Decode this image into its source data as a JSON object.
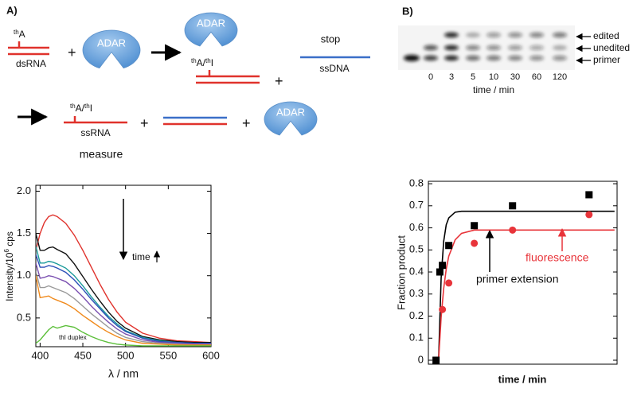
{
  "panel_a": {
    "label": "A)",
    "tha": [
      "th",
      "A"
    ],
    "dsrna": "dsRNA",
    "plus": "+",
    "adar": "ADAR",
    "tha_thi": [
      "th",
      "A/",
      "th",
      "I"
    ],
    "stop": "stop",
    "ssdna": "ssDNA",
    "ssrna": "ssRNA",
    "measure": "measure"
  },
  "panel_b": {
    "label": "B)",
    "band_labels": [
      "edited",
      "unedited",
      "primer"
    ],
    "lanes": [
      "0",
      "3",
      "5",
      "10",
      "30",
      "60",
      "120"
    ],
    "lane_axis": "time / min"
  },
  "chart_data": [
    {
      "type": "line",
      "xlabel": "λ / nm",
      "ylabel": [
        "Intensity/10",
        "6",
        " cps"
      ],
      "annotations": [
        "time",
        "thI duplex"
      ],
      "x": [
        395,
        400,
        405,
        410,
        415,
        420,
        430,
        440,
        450,
        460,
        470,
        480,
        490,
        500,
        520,
        540,
        560,
        580,
        600
      ],
      "xlim": [
        395,
        600
      ],
      "xticks": [
        400,
        450,
        500,
        550,
        600
      ],
      "ylim": [
        0.16,
        2.07
      ],
      "yticks": [
        0.5,
        {
          "value": 1,
          "label": "1.0"
        },
        1.5,
        {
          "value": 2,
          "label": "2.0"
        }
      ],
      "series": [
        {
          "color": "#e0322c",
          "values": [
            1.3,
            1.5,
            1.63,
            1.7,
            1.72,
            1.7,
            1.62,
            1.48,
            1.3,
            1.1,
            0.9,
            0.72,
            0.57,
            0.45,
            0.32,
            0.26,
            0.23,
            0.22,
            0.21
          ]
        },
        {
          "color": "#111111",
          "values": [
            1.5,
            1.3,
            1.3,
            1.33,
            1.34,
            1.31,
            1.26,
            1.14,
            0.99,
            0.84,
            0.7,
            0.57,
            0.46,
            0.38,
            0.28,
            0.24,
            0.22,
            0.21,
            0.21
          ]
        },
        {
          "color": "#1a9a9a",
          "values": [
            1.35,
            1.15,
            1.15,
            1.17,
            1.16,
            1.14,
            1.09,
            1.0,
            0.88,
            0.75,
            0.63,
            0.52,
            0.43,
            0.35,
            0.27,
            0.23,
            0.21,
            0.2,
            0.2
          ]
        },
        {
          "color": "#2b4fb8",
          "values": [
            1.25,
            1.1,
            1.1,
            1.12,
            1.11,
            1.09,
            1.04,
            0.95,
            0.84,
            0.72,
            0.61,
            0.5,
            0.41,
            0.34,
            0.26,
            0.22,
            0.21,
            0.2,
            0.2
          ]
        },
        {
          "color": "#7a4fb0",
          "values": [
            1.15,
            0.97,
            0.98,
            1.0,
            0.99,
            0.97,
            0.93,
            0.85,
            0.75,
            0.64,
            0.54,
            0.45,
            0.37,
            0.31,
            0.24,
            0.21,
            0.2,
            0.19,
            0.19
          ]
        },
        {
          "color": "#9a9a9a",
          "values": [
            1.05,
            0.86,
            0.86,
            0.88,
            0.86,
            0.84,
            0.8,
            0.73,
            0.64,
            0.55,
            0.47,
            0.39,
            0.32,
            0.27,
            0.22,
            0.2,
            0.19,
            0.18,
            0.18
          ]
        },
        {
          "color": "#f08a1c",
          "values": [
            1.0,
            0.74,
            0.75,
            0.76,
            0.73,
            0.71,
            0.67,
            0.61,
            0.53,
            0.46,
            0.39,
            0.33,
            0.28,
            0.24,
            0.2,
            0.19,
            0.18,
            0.18,
            0.18
          ]
        },
        {
          "color": "#5cbf3a",
          "values": [
            0.2,
            0.24,
            0.3,
            0.36,
            0.4,
            0.38,
            0.41,
            0.39,
            0.33,
            0.28,
            0.24,
            0.21,
            0.19,
            0.18,
            0.17,
            0.17,
            0.17,
            0.17,
            0.17
          ]
        }
      ]
    },
    {
      "type": "scatter",
      "xlabel": "time / min",
      "ylabel": "Fraction product",
      "annotations": [
        "primer extension",
        "fluorescence"
      ],
      "xlim": [
        -6,
        142
      ],
      "ylim": [
        -0.018,
        0.811
      ],
      "yticks": [
        0,
        0.1,
        0.2,
        0.3,
        0.4,
        0.5,
        0.6,
        0.7,
        0.8
      ],
      "series": [
        {
          "color": "#000000",
          "x": [
            0,
            3,
            5,
            10,
            30,
            60,
            120
          ],
          "values": [
            0,
            0.4,
            0.43,
            0.52,
            0.61,
            0.7,
            0.75
          ]
        },
        {
          "color": "#e8343a",
          "x": [
            5,
            10,
            30,
            60,
            120
          ],
          "values": [
            0.23,
            0.35,
            0.53,
            0.59,
            0.66
          ]
        }
      ],
      "fits": [
        {
          "color": "#000000",
          "x": [
            2,
            4,
            6,
            8,
            10,
            15,
            20,
            30,
            40,
            140
          ],
          "values": [
            0,
            0.372,
            0.539,
            0.614,
            0.645,
            0.671,
            0.675,
            0.675,
            0.675,
            0.675
          ]
        },
        {
          "color": "#e8343a",
          "x": [
            2,
            4,
            6,
            8,
            10,
            15,
            20,
            30,
            40,
            140
          ],
          "values": [
            0,
            0.194,
            0.325,
            0.413,
            0.472,
            0.546,
            0.575,
            0.59,
            0.59,
            0.59
          ]
        }
      ]
    }
  ]
}
